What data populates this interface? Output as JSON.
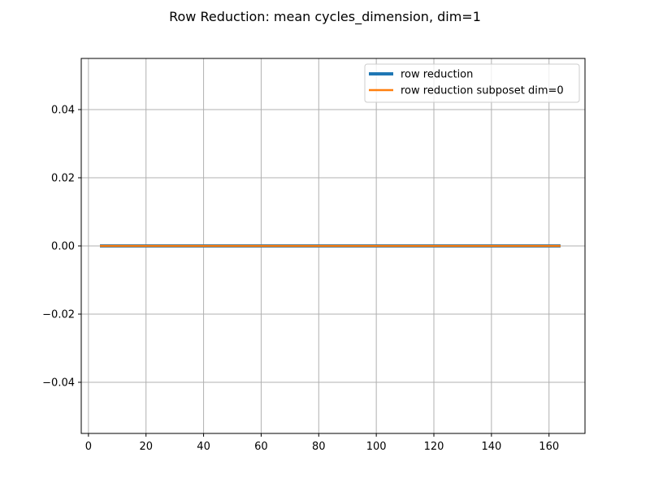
{
  "chart_data": {
    "type": "line",
    "title": "Row Reduction: mean cycles_dimension, dim=1",
    "xlabel": "",
    "ylabel": "",
    "xlim": [
      -2.5,
      172.5
    ],
    "ylim": [
      -0.055,
      0.055
    ],
    "xticks": [
      0,
      20,
      40,
      60,
      80,
      100,
      120,
      140,
      160
    ],
    "yticks": [
      -0.04,
      -0.02,
      0.0,
      0.02,
      0.04
    ],
    "ytick_labels": [
      "−0.04",
      "−0.02",
      "0.00",
      "0.02",
      "0.04"
    ],
    "grid": true,
    "legend_position": "top-right",
    "series": [
      {
        "name": "row reduction",
        "color": "#1f77b4",
        "x": [
          4,
          164
        ],
        "y": [
          0,
          0
        ]
      },
      {
        "name": "row reduction subposet dim=0",
        "color": "#ff7f0e",
        "x": [
          4,
          164
        ],
        "y": [
          0,
          0
        ]
      }
    ]
  }
}
